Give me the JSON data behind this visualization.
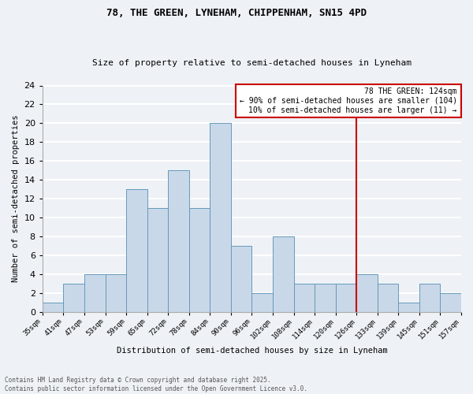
{
  "title1": "78, THE GREEN, LYNEHAM, CHIPPENHAM, SN15 4PD",
  "title2": "Size of property relative to semi-detached houses in Lyneham",
  "xlabel": "Distribution of semi-detached houses by size in Lyneham",
  "ylabel": "Number of semi-detached properties",
  "bar_color": "#c8d8e8",
  "bar_edge_color": "#6699bb",
  "categories": [
    "35sqm",
    "41sqm",
    "47sqm",
    "53sqm",
    "59sqm",
    "65sqm",
    "72sqm",
    "78sqm",
    "84sqm",
    "90sqm",
    "96sqm",
    "102sqm",
    "108sqm",
    "114sqm",
    "120sqm",
    "126sqm",
    "133sqm",
    "139sqm",
    "145sqm",
    "151sqm",
    "157sqm"
  ],
  "values": [
    1,
    3,
    4,
    4,
    13,
    11,
    15,
    11,
    20,
    7,
    2,
    8,
    3,
    3,
    3,
    4,
    3,
    1,
    3,
    2
  ],
  "vline_color": "#cc0000",
  "annotation_text": "78 THE GREEN: 124sqm\n← 90% of semi-detached houses are smaller (104)\n10% of semi-detached houses are larger (11) →",
  "annotation_box_color": "#ffffff",
  "annotation_border_color": "#cc0000",
  "ylim": [
    0,
    24
  ],
  "yticks": [
    0,
    2,
    4,
    6,
    8,
    10,
    12,
    14,
    16,
    18,
    20,
    22,
    24
  ],
  "footer_text": "Contains HM Land Registry data © Crown copyright and database right 2025.\nContains public sector information licensed under the Open Government Licence v3.0.",
  "background_color": "#eef2f6",
  "grid_color": "#ffffff"
}
